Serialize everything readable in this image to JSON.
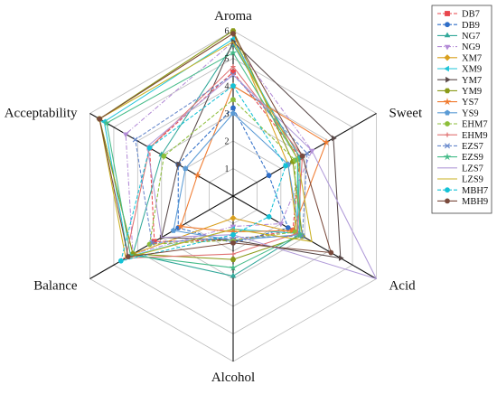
{
  "chart_data": {
    "type": "radar",
    "axes": [
      "Aroma",
      "Sweet",
      "Acid",
      "Alcohol",
      "Balance",
      "Acceptability"
    ],
    "range": [
      0,
      6
    ],
    "ticks": [
      "1",
      "2",
      "3",
      "4",
      "5",
      "6"
    ],
    "grid": true,
    "legend_position": "right",
    "series": [
      {
        "name": "DB7",
        "color": "#e8454b",
        "dash": "4,2",
        "marker": "square",
        "values": [
          4.5,
          2.8,
          2.5,
          1.6,
          3.3,
          3.5
        ]
      },
      {
        "name": "DB9",
        "color": "#2f6ec7",
        "dash": "4,2",
        "marker": "circle",
        "values": [
          3.2,
          1.5,
          2.3,
          1.7,
          2.3,
          2.3
        ]
      },
      {
        "name": "NG7",
        "color": "#33a89a",
        "dash": "",
        "marker": "triangle",
        "values": [
          5.5,
          2.8,
          2.8,
          2.9,
          4.2,
          3.0
        ]
      },
      {
        "name": "NG9",
        "color": "#b28ad6",
        "dash": "5,2,1,2",
        "marker": "triangle-down",
        "values": [
          5.6,
          3.3,
          2.0,
          1.1,
          4.2,
          4.5
        ]
      },
      {
        "name": "XM7",
        "color": "#d9a01f",
        "dash": "",
        "marker": "diamond",
        "values": [
          5.9,
          2.3,
          2.7,
          0.8,
          4.2,
          5.6
        ]
      },
      {
        "name": "XM9",
        "color": "#1fc4d8",
        "dash": "",
        "marker": "triangle-left",
        "values": [
          5.7,
          2.7,
          2.7,
          1.2,
          4.4,
          5.4
        ]
      },
      {
        "name": "YM7",
        "color": "#5a4a4a",
        "dash": "",
        "marker": "triangle-right",
        "values": [
          5.6,
          4.2,
          4.5,
          1.6,
          3.0,
          2.3
        ]
      },
      {
        "name": "YM9",
        "color": "#8a9a18",
        "dash": "",
        "marker": "hexagon",
        "values": [
          6.0,
          2.5,
          2.9,
          2.3,
          4.2,
          5.6
        ]
      },
      {
        "name": "YS7",
        "color": "#f07a2e",
        "dash": "",
        "marker": "star",
        "values": [
          4.0,
          3.9,
          2.5,
          1.3,
          2.2,
          1.5
        ]
      },
      {
        "name": "YS9",
        "color": "#5b9bd5",
        "dash": "",
        "marker": "pentagon",
        "values": [
          3.0,
          2.3,
          2.8,
          1.6,
          2.5,
          2.0
        ]
      },
      {
        "name": "EHM7",
        "color": "#8dbe3a",
        "dash": "4,2",
        "marker": "circle",
        "values": [
          3.5,
          2.6,
          2.6,
          1.6,
          3.5,
          2.9
        ]
      },
      {
        "name": "EHM9",
        "color": "#e07070",
        "dash": "",
        "marker": "plus",
        "values": [
          4.7,
          2.9,
          2.7,
          2.1,
          4.5,
          3.5
        ]
      },
      {
        "name": "EZS7",
        "color": "#6688cc",
        "dash": "4,2",
        "marker": "x",
        "values": [
          4.4,
          3.1,
          2.9,
          1.5,
          3.4,
          4.1
        ]
      },
      {
        "name": "EZS9",
        "color": "#44bb88",
        "dash": "",
        "marker": "star",
        "values": [
          5.2,
          2.7,
          2.8,
          2.6,
          4.3,
          5.3
        ]
      },
      {
        "name": "LZS7",
        "color": "#b09ad8",
        "dash": "",
        "marker": "none",
        "values": [
          4.4,
          3.3,
          6.0,
          1.4,
          3.0,
          3.6
        ]
      },
      {
        "name": "LZS9",
        "color": "#c9b020",
        "dash": "",
        "marker": "none",
        "values": [
          5.6,
          2.7,
          3.3,
          1.2,
          4.5,
          5.6
        ]
      },
      {
        "name": "MBH7",
        "color": "#14c2d6",
        "dash": "4,2",
        "marker": "circle",
        "values": [
          4.0,
          2.2,
          1.5,
          1.4,
          4.7,
          3.5
        ]
      },
      {
        "name": "MBH9",
        "color": "#7a4a3c",
        "dash": "",
        "marker": "circle",
        "values": [
          5.9,
          2.9,
          4.1,
          1.7,
          4.4,
          5.6
        ]
      }
    ]
  }
}
